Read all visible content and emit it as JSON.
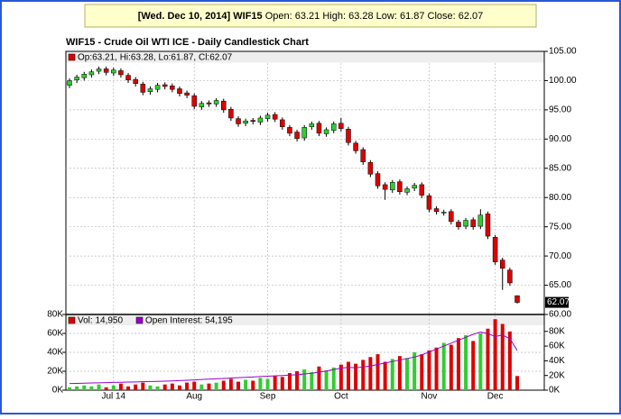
{
  "header": {
    "date": "[Wed. Dec 10, 2014]",
    "symbol": "WIF15",
    "quote": "Open: 63.21 High: 63.28 Low: 61.87 Close: 62.07"
  },
  "chart_data": [
    {
      "type": "candlestick",
      "title": "WIF15 - Crude Oil WTI ICE - Daily Candlestick Chart",
      "legend_text": "Op:63.21, Hi:63.28, Lo:61.87, Cl:62.07",
      "up_color": "#33cc33",
      "down_color": "#dd0000",
      "grid": true,
      "categories": [
        null,
        null,
        null,
        null,
        null,
        null,
        "Jul 14",
        null,
        null,
        null,
        null,
        null,
        null,
        null,
        null,
        null,
        null,
        "Aug",
        null,
        null,
        null,
        null,
        null,
        null,
        null,
        null,
        null,
        "Sep",
        null,
        null,
        null,
        null,
        null,
        null,
        null,
        null,
        null,
        "Oct",
        null,
        null,
        null,
        null,
        null,
        null,
        null,
        null,
        null,
        null,
        null,
        "Nov",
        null,
        null,
        null,
        null,
        null,
        null,
        null,
        null,
        "Dec",
        null,
        null,
        null
      ],
      "open": [
        99.2,
        100.1,
        100.5,
        101.0,
        101.6,
        102.0,
        101.3,
        101.7,
        100.9,
        100.2,
        99.4,
        98.1,
        98.5,
        99.3,
        99.1,
        98.6,
        97.9,
        97.4,
        95.5,
        96.2,
        96.0,
        96.5,
        95.1,
        93.5,
        92.7,
        93.2,
        92.9,
        93.5,
        94.2,
        93.3,
        92.0,
        91.2,
        90.2,
        92.1,
        92.7,
        90.9,
        91.5,
        92.7,
        91.7,
        89.3,
        88.2,
        86.0,
        84.1,
        82.2,
        81.3,
        82.7,
        80.9,
        81.6,
        82.2,
        80.3,
        78.1,
        77.4,
        77.6,
        75.8,
        75.1,
        76.2,
        75.1,
        77.2,
        73.2,
        69.3,
        67.6,
        63.21
      ],
      "high": [
        100.4,
        101.0,
        101.5,
        101.9,
        102.4,
        102.4,
        102.2,
        102.1,
        101.3,
        100.6,
        99.8,
        99.0,
        99.6,
        99.7,
        99.5,
        99.0,
        98.3,
        97.8,
        96.5,
        96.6,
        97.0,
        96.9,
        95.5,
        93.9,
        93.5,
        93.6,
        94.0,
        94.5,
        94.6,
        93.7,
        92.4,
        91.6,
        92.4,
        93.0,
        93.1,
        92.0,
        93.0,
        93.6,
        92.1,
        89.7,
        88.6,
        86.4,
        84.5,
        82.6,
        83.0,
        83.1,
        81.9,
        82.5,
        82.6,
        80.7,
        78.5,
        77.9,
        78.0,
        76.2,
        76.5,
        76.6,
        78.0,
        77.6,
        73.6,
        69.7,
        68.0,
        63.28
      ],
      "low": [
        98.7,
        99.6,
        100.0,
        100.5,
        101.1,
        100.9,
        100.8,
        100.5,
        99.6,
        99.0,
        97.5,
        97.6,
        98.0,
        98.5,
        98.0,
        97.3,
        97.0,
        95.1,
        95.0,
        95.5,
        95.5,
        94.5,
        93.1,
        92.1,
        92.2,
        92.5,
        92.4,
        93.0,
        92.9,
        91.6,
        90.5,
        89.6,
        89.7,
        91.6,
        90.5,
        90.4,
        91.0,
        91.3,
        88.9,
        87.5,
        85.6,
        83.5,
        81.5,
        79.6,
        80.8,
        80.5,
        80.4,
        81.1,
        79.9,
        77.5,
        77.1,
        76.9,
        75.4,
        74.5,
        74.6,
        74.5,
        74.6,
        72.9,
        68.5,
        64.2,
        64.9,
        61.87
      ],
      "close": [
        100.0,
        100.6,
        101.1,
        101.5,
        102.0,
        101.4,
        101.8,
        101.0,
        100.1,
        99.5,
        98.0,
        98.6,
        99.2,
        99.0,
        98.5,
        97.8,
        97.5,
        95.6,
        96.1,
        96.0,
        96.6,
        95.0,
        93.6,
        92.6,
        93.1,
        93.0,
        93.6,
        94.1,
        93.4,
        92.1,
        91.0,
        90.1,
        92.0,
        92.6,
        91.0,
        91.6,
        92.6,
        91.8,
        89.4,
        88.0,
        86.1,
        84.0,
        82.0,
        81.4,
        82.6,
        81.0,
        81.5,
        82.1,
        80.4,
        78.0,
        77.6,
        77.5,
        75.9,
        75.0,
        76.1,
        75.0,
        77.0,
        73.4,
        69.0,
        67.9,
        65.4,
        62.07
      ],
      "ylim": [
        60,
        105
      ],
      "yticks": [
        {
          "value": 60,
          "label": "60.00"
        },
        {
          "value": 65,
          "label": "65.00"
        },
        {
          "value": 70,
          "label": "70.00"
        },
        {
          "value": 75,
          "label": "75.00"
        },
        {
          "value": 80,
          "label": "80.00"
        },
        {
          "value": 85,
          "label": "85.00"
        },
        {
          "value": 90,
          "label": "90.00"
        },
        {
          "value": 95,
          "label": "95.00"
        },
        {
          "value": 100,
          "label": "100.00"
        },
        {
          "value": 105,
          "label": "105.00"
        }
      ]
    },
    {
      "type": "volume",
      "grid": true,
      "series": [
        {
          "name": "Vol: 14,950",
          "color": "#dd0000",
          "values": [
            3000,
            4000,
            5000,
            4000,
            6000,
            3000,
            5000,
            7000,
            4000,
            6000,
            8000,
            5000,
            4000,
            6000,
            7000,
            5000,
            8000,
            9000,
            6000,
            7000,
            8000,
            10000,
            12000,
            9000,
            11000,
            10000,
            13000,
            12000,
            15000,
            14000,
            18000,
            20000,
            22000,
            19000,
            25000,
            21000,
            24000,
            27000,
            30000,
            28000,
            32000,
            35000,
            38000,
            30000,
            33000,
            36000,
            34000,
            40000,
            38000,
            42000,
            45000,
            50000,
            48000,
            55000,
            58000,
            52000,
            60000,
            65000,
            75000,
            70000,
            62000,
            14950
          ]
        },
        {
          "name": "Open Interest: 54,195",
          "color": "#9900cc",
          "axis": "y2",
          "values": [
            9000,
            9200,
            9500,
            9800,
            10000,
            10200,
            10500,
            10800,
            11000,
            11200,
            11500,
            11800,
            12000,
            12300,
            12600,
            13000,
            13500,
            14000,
            14500,
            15000,
            15500,
            16000,
            16500,
            17000,
            17500,
            18000,
            18500,
            19000,
            19500,
            20000,
            20500,
            21000,
            22000,
            23000,
            24500,
            26000,
            28000,
            30000,
            31000,
            30500,
            31500,
            33000,
            35000,
            37000,
            39000,
            41000,
            43000,
            45000,
            48000,
            52000,
            56000,
            60000,
            64000,
            68000,
            72000,
            76000,
            79000,
            77000,
            73000,
            75000,
            70000,
            54195
          ]
        }
      ],
      "ylim": [
        0,
        80000
      ],
      "yticks": [
        {
          "value": 0,
          "label": "0K"
        },
        {
          "value": 20000,
          "label": "20K"
        },
        {
          "value": 40000,
          "label": "40K"
        },
        {
          "value": 60000,
          "label": "60K"
        },
        {
          "value": 80000,
          "label": "80K"
        }
      ],
      "y2lim": [
        0,
        103000
      ],
      "y2ticks": [
        {
          "value": 0,
          "label": "0K"
        },
        {
          "value": 20000,
          "label": "20K"
        },
        {
          "value": 40000,
          "label": "40K"
        },
        {
          "value": 60000,
          "label": "60K"
        },
        {
          "value": 80000,
          "label": "80K"
        }
      ]
    }
  ]
}
